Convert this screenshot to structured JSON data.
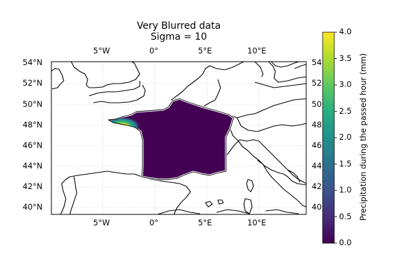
{
  "title": {
    "line1": "Very Blurred data",
    "line2": "Sigma = 10"
  },
  "map": {
    "lon_ticks": [
      "5°W",
      "0°",
      "5°E",
      "10°E"
    ],
    "lat_ticks": [
      "54°N",
      "52°N",
      "50°N",
      "48°N",
      "46°N",
      "44°N",
      "42°N",
      "40°N"
    ],
    "right_lat_ticks_clipped": [
      "54",
      "52",
      "50",
      "48",
      "46",
      "44",
      "42",
      "40"
    ],
    "extent": {
      "lon_min": -10,
      "lon_max": 14.5,
      "lat_min": 39.3,
      "lat_max": 54.2
    },
    "gridlines": true,
    "coastline_color": "#000000",
    "field_color_low": "#440154",
    "field_color_high": "#fde725"
  },
  "colorbar": {
    "label": "Precipitation during the passed hour (mm)",
    "ticks": [
      "0.0",
      "0.5",
      "1.0",
      "1.5",
      "2.0",
      "2.5",
      "3.0",
      "3.5",
      "4.0"
    ],
    "min": 0,
    "max": 4,
    "colormap": "viridis"
  }
}
